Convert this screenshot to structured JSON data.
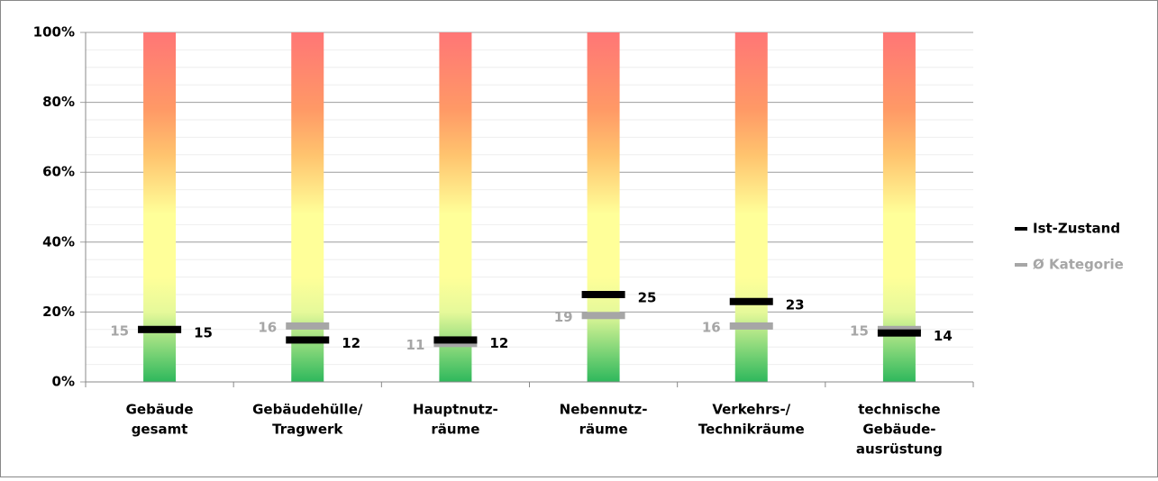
{
  "chart_data": {
    "type": "marker",
    "categories": [
      [
        "Gebäude",
        "gesamt"
      ],
      [
        "Gebäudehülle/",
        "Tragwerk"
      ],
      [
        "Hauptnutz-",
        "räume"
      ],
      [
        "Nebennutz-",
        "räume"
      ],
      [
        "Verkehrs-/",
        "Technikräume"
      ],
      [
        "technische",
        "Gebäude-",
        "ausrüstung"
      ]
    ],
    "series": [
      {
        "name": "Ist-Zustand",
        "color": "#000000",
        "values": [
          15,
          12,
          12,
          25,
          23,
          14
        ],
        "label_color": "#000000"
      },
      {
        "name": "Ø Kategorie",
        "color": "#a6a6a6",
        "values": [
          15,
          16,
          11,
          19,
          16,
          15
        ],
        "label_color": "#a6a6a6"
      }
    ],
    "ylim": [
      0,
      100
    ],
    "yticks": [
      {
        "value": 0,
        "label": "0%"
      },
      {
        "value": 20,
        "label": "20%"
      },
      {
        "value": 40,
        "label": "40%"
      },
      {
        "value": 60,
        "label": "60%"
      },
      {
        "value": 80,
        "label": "80%"
      },
      {
        "value": 100,
        "label": "100%"
      }
    ],
    "grid": true,
    "legend": "right"
  }
}
